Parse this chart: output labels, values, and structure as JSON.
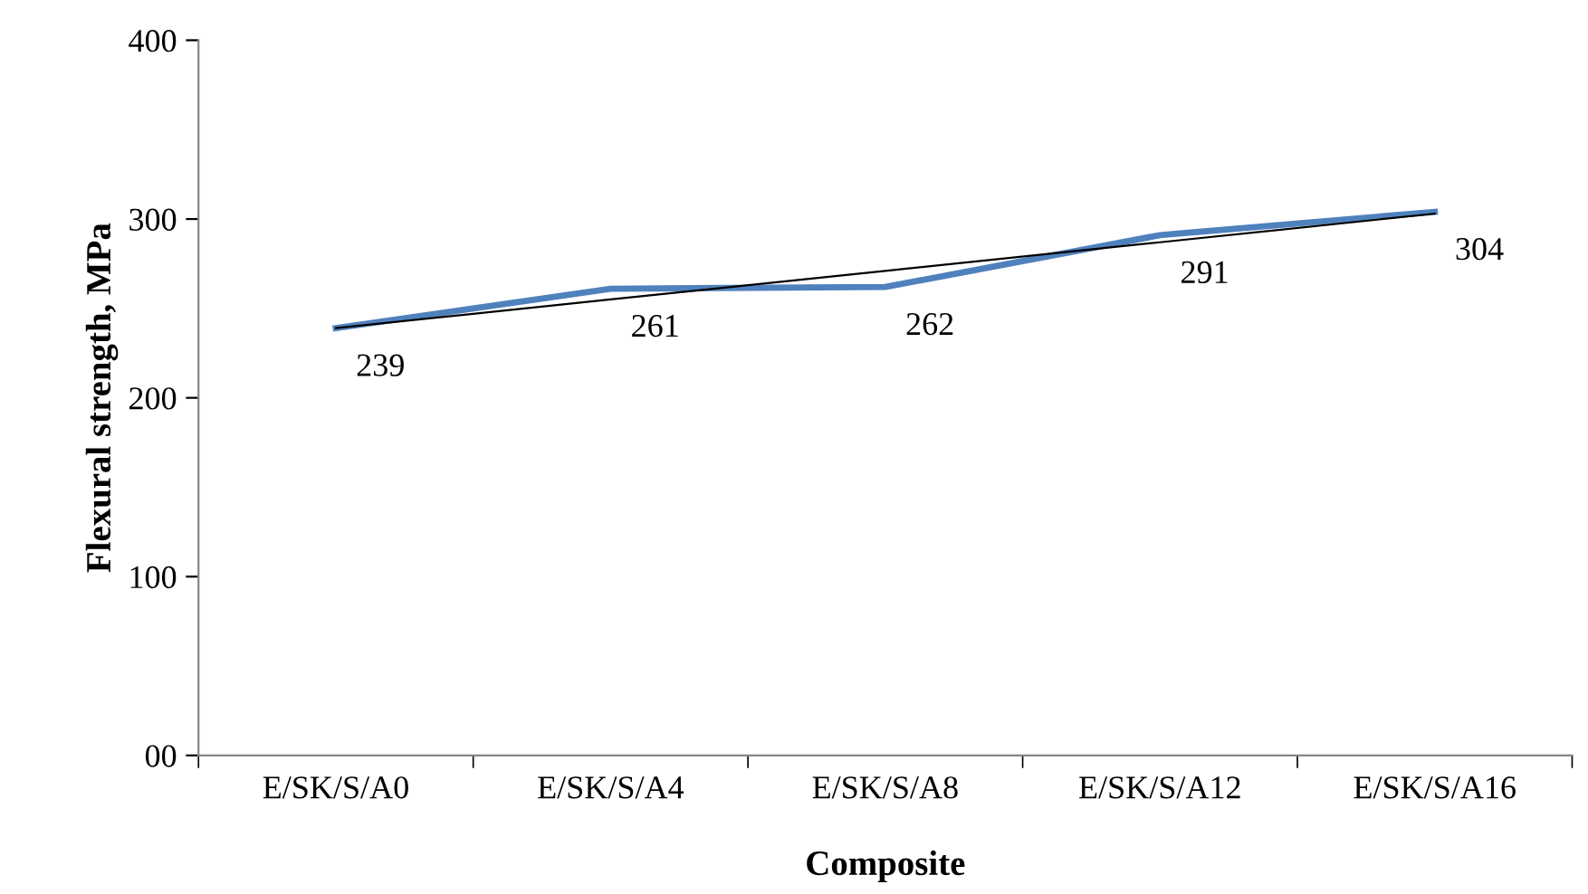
{
  "chart_data": {
    "type": "line",
    "xlabel": "Composite",
    "ylabel": "Flexural strength, MPa",
    "categories": [
      "E/SK/S/A0",
      "E/SK/S/A4",
      "E/SK/S/A8",
      "E/SK/S/A12",
      "E/SK/S/A16"
    ],
    "series": [
      {
        "color": "#4f81bd",
        "values": [
          239,
          261,
          262,
          291,
          304
        ],
        "value_labels": [
          "239",
          "261",
          "262",
          "291",
          "304"
        ]
      },
      {
        "type": "line",
        "color": "#000000",
        "values": [
          239,
          255,
          271,
          287,
          303
        ]
      }
    ],
    "ylim": [
      0,
      400
    ],
    "yticks": [
      {
        "value": 0,
        "label": "00"
      },
      100,
      200,
      300,
      400
    ],
    "grid": false,
    "legend": false,
    "marker": "none",
    "line_style": "solid"
  }
}
